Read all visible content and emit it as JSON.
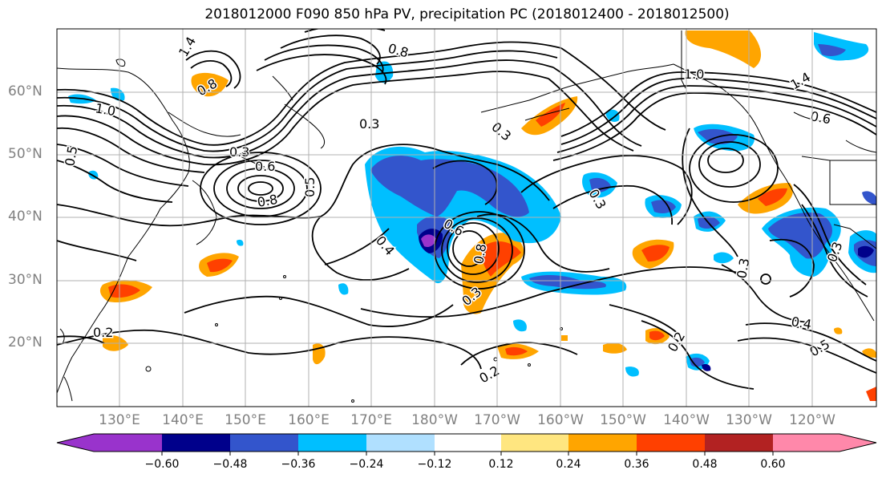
{
  "title": "2018012000 F090 850 hPa PV, precipitation PC (2018012400 - 2018012500)",
  "map": {
    "lat_labels": [
      "60°N",
      "50°N",
      "40°N",
      "30°N",
      "20°N"
    ],
    "lon_labels": [
      "130°E",
      "140°E",
      "150°E",
      "160°E",
      "170°E",
      "180°W",
      "170°W",
      "160°W",
      "150°W",
      "140°W",
      "130°W",
      "120°W"
    ],
    "contour_labels": [
      {
        "text": "1.4",
        "rot": -60
      },
      {
        "text": "0.8",
        "rot": 15
      },
      {
        "text": "1.0",
        "rot": 10
      },
      {
        "text": "0.8",
        "rot": -30
      },
      {
        "text": "0.5",
        "rot": -80
      },
      {
        "text": "0.3",
        "rot": 0
      },
      {
        "text": "0.6",
        "rot": 0
      },
      {
        "text": "0.8",
        "rot": -10
      },
      {
        "text": "0.5",
        "rot": -90
      },
      {
        "text": "0.3",
        "rot": 0
      },
      {
        "text": "0.3",
        "rot": 40
      },
      {
        "text": "1.0",
        "rot": 0
      },
      {
        "text": "1.4",
        "rot": -30
      },
      {
        "text": "0.6",
        "rot": 10
      },
      {
        "text": "0.3",
        "rot": 60
      },
      {
        "text": "0.6",
        "rot": 30
      },
      {
        "text": "0.4",
        "rot": 50
      },
      {
        "text": "0.8",
        "rot": -80
      },
      {
        "text": "0.3",
        "rot": -40
      },
      {
        "text": "0.2",
        "rot": 0
      },
      {
        "text": "0.2",
        "rot": -30
      },
      {
        "text": "0.2",
        "rot": -60
      },
      {
        "text": "0.4",
        "rot": 10
      },
      {
        "text": "0.5",
        "rot": -30
      },
      {
        "text": "0.3",
        "rot": -80
      },
      {
        "text": "0.3",
        "rot": -70
      }
    ]
  },
  "colorbar": {
    "colors": [
      "#9933cc",
      "#00008b",
      "#3355cc",
      "#00bfff",
      "#b0e0ff",
      "#ffffff",
      "#ffe680",
      "#ffa500",
      "#ff4000",
      "#b22222",
      "#ff88aa"
    ],
    "ticks": [
      "−0.60",
      "−0.48",
      "−0.36",
      "−0.24",
      "−0.12",
      "0.12",
      "0.24",
      "0.36",
      "0.48",
      "0.60"
    ]
  }
}
